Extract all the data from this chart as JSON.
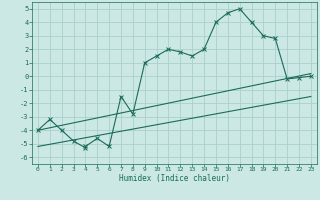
{
  "title": "",
  "xlabel": "Humidex (Indice chaleur)",
  "xlim": [
    -0.5,
    23.5
  ],
  "ylim": [
    -6.5,
    5.5
  ],
  "xticks": [
    0,
    1,
    2,
    3,
    4,
    5,
    6,
    7,
    8,
    9,
    10,
    11,
    12,
    13,
    14,
    15,
    16,
    17,
    18,
    19,
    20,
    21,
    22,
    23
  ],
  "yticks": [
    -6,
    -5,
    -4,
    -3,
    -2,
    -1,
    0,
    1,
    2,
    3,
    4,
    5
  ],
  "bg_color": "#cce8e4",
  "line_color": "#1a6b5a",
  "grid_color": "#aacfca",
  "line1_x": [
    0,
    1,
    2,
    3,
    4,
    4,
    5,
    6,
    7,
    8,
    9,
    10,
    11,
    12,
    13,
    14,
    15,
    16,
    17,
    18,
    19,
    20,
    21,
    22,
    23
  ],
  "line1_y": [
    -4,
    -3.2,
    -4,
    -4.8,
    -5.3,
    -5.2,
    -4.6,
    -5.2,
    -1.5,
    -2.8,
    1,
    1.5,
    2,
    1.8,
    1.5,
    2,
    4,
    4.7,
    5,
    4,
    3,
    2.8,
    -0.2,
    -0.1,
    0
  ],
  "line2_x": [
    0,
    23
  ],
  "line2_y": [
    -4,
    0.2
  ],
  "line3_x": [
    0,
    23
  ],
  "line3_y": [
    -5.2,
    -1.5
  ]
}
